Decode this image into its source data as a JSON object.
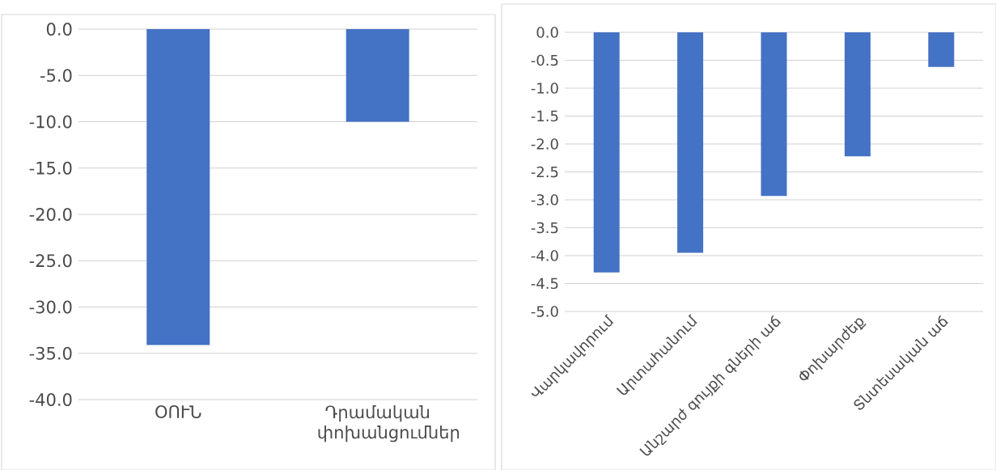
{
  "chart_data": [
    {
      "type": "bar",
      "categories": [
        "ՕՈՒՆ",
        "Դրամական փոխանցումներ"
      ],
      "values": [
        -34.1,
        -10.0
      ],
      "color": "#4472c4",
      "ylim": [
        -40,
        0
      ],
      "yticks": [
        {
          "value": -40,
          "label": "-40.0"
        },
        {
          "value": -35,
          "label": "-35.0"
        },
        {
          "value": -30,
          "label": "-30.0"
        },
        {
          "value": -25,
          "label": "-25.0"
        },
        {
          "value": -20,
          "label": "-20.0"
        },
        {
          "value": -15,
          "label": "-15.0"
        },
        {
          "value": -10,
          "label": "-10.0"
        },
        {
          "value": -5,
          "label": "-5.0"
        },
        {
          "value": 0,
          "label": "0.0"
        }
      ],
      "grid": "y"
    },
    {
      "type": "bar",
      "categories": [
        "Վարկավորում",
        "Արտահանում",
        "Անշարժ գույքի գների աճ",
        "Փոխարժեք",
        "Տնտեսական աճ"
      ],
      "values": [
        -4.3,
        -3.95,
        -2.93,
        -2.22,
        -0.62
      ],
      "color": "#4472c4",
      "ylim": [
        -5,
        0
      ],
      "yticks": [
        {
          "value": -5,
          "label": "-5.0"
        },
        {
          "value": -4.5,
          "label": "-4.5"
        },
        {
          "value": -4,
          "label": "-4.0"
        },
        {
          "value": -3.5,
          "label": "-3.5"
        },
        {
          "value": -3,
          "label": "-3.0"
        },
        {
          "value": -2.5,
          "label": "-2.5"
        },
        {
          "value": -2,
          "label": "-2.0"
        },
        {
          "value": -1.5,
          "label": "-1.5"
        },
        {
          "value": -1,
          "label": "-1.0"
        },
        {
          "value": -0.5,
          "label": "-0.5"
        },
        {
          "value": 0,
          "label": "0.0"
        }
      ],
      "grid": "y"
    }
  ]
}
